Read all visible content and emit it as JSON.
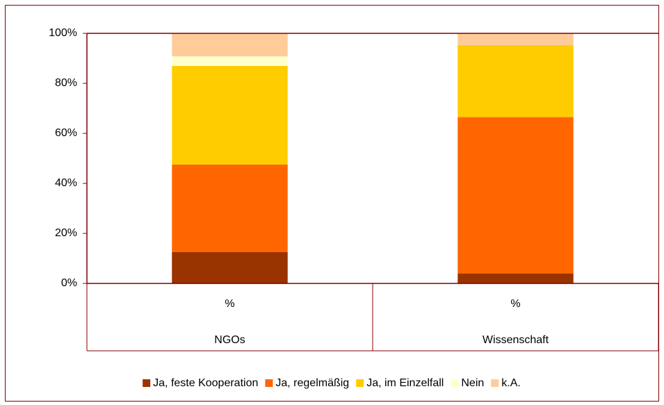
{
  "chart_data": {
    "type": "stacked_bar",
    "categories": [
      "%",
      "%"
    ],
    "groups": [
      "NGOs",
      "Wissenschaft"
    ],
    "series": [
      {
        "name": "Ja, feste Kooperation",
        "color": "#993300",
        "values": [
          12.5,
          4
        ]
      },
      {
        "name": "Ja, regelmäßig",
        "color": "#ff6600",
        "values": [
          35,
          62.5
        ]
      },
      {
        "name": "Ja, im Einzelfall",
        "color": "#ffcc00",
        "values": [
          39.5,
          28.8
        ]
      },
      {
        "name": "Nein",
        "color": "#ffffcc",
        "values": [
          3.8,
          0
        ]
      },
      {
        "name": "k.A.",
        "color": "#ffcc99",
        "values": [
          9.2,
          4.7
        ]
      }
    ],
    "ylim": [
      0,
      100
    ],
    "yticks": [
      {
        "value": 0,
        "label": "0%"
      },
      {
        "value": 20,
        "label": "20%"
      },
      {
        "value": 40,
        "label": "40%"
      },
      {
        "value": 60,
        "label": "60%"
      },
      {
        "value": 80,
        "label": "80%"
      },
      {
        "value": 100,
        "label": "100%"
      }
    ],
    "legend": "bottom"
  }
}
